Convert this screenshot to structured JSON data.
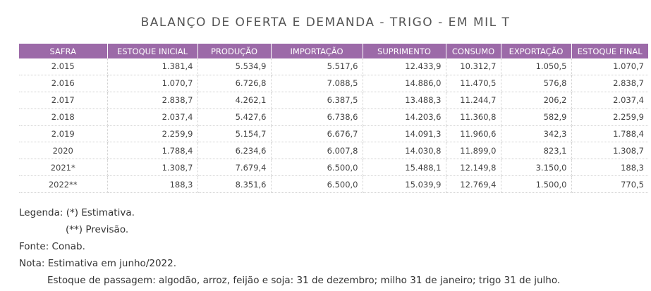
{
  "title": "BALANÇO DE OFERTA E DEMANDA - TRIGO - EM MIL T",
  "table": {
    "headers": [
      "SAFRA",
      "ESTOQUE INICIAL",
      "PRODUÇÃO",
      "IMPORTAÇÃO",
      "SUPRIMENTO",
      "CONSUMO",
      "EXPORTAÇÃO",
      "ESTOQUE FINAL"
    ],
    "rows": [
      [
        "2.015",
        "1.381,4",
        "5.534,9",
        "5.517,6",
        "12.433,9",
        "10.312,7",
        "1.050,5",
        "1.070,7"
      ],
      [
        "2.016",
        "1.070,7",
        "6.726,8",
        "7.088,5",
        "14.886,0",
        "11.470,5",
        "576,8",
        "2.838,7"
      ],
      [
        "2.017",
        "2.838,7",
        "4.262,1",
        "6.387,5",
        "13.488,3",
        "11.244,7",
        "206,2",
        "2.037,4"
      ],
      [
        "2.018",
        "2.037,4",
        "5.427,6",
        "6.738,6",
        "14.203,6",
        "11.360,8",
        "582,9",
        "2.259,9"
      ],
      [
        "2.019",
        "2.259,9",
        "5.154,7",
        "6.676,7",
        "14.091,3",
        "11.960,6",
        "342,3",
        "1.788,4"
      ],
      [
        "2020",
        "1.788,4",
        "6.234,6",
        "6.007,8",
        "14.030,8",
        "11.899,0",
        "823,1",
        "1.308,7"
      ],
      [
        "2021*",
        "1.308,7",
        "7.679,4",
        "6.500,0",
        "15.488,1",
        "12.149,8",
        "3.150,0",
        "188,3"
      ],
      [
        "2022**",
        "188,3",
        "8.351,6",
        "6.500,0",
        "15.039,9",
        "12.769,4",
        "1.500,0",
        "770,5"
      ]
    ]
  },
  "notes": {
    "legend1": "Legenda: (*) Estimativa.",
    "legend2": "(**) Previsão.",
    "source": "Fonte: Conab.",
    "note1": "Nota: Estimativa em junho/2022.",
    "note2": "Estoque de passagem: algodão, arroz, feijão e soja: 31 de dezembro; milho 31 de janeiro; trigo 31 de julho."
  }
}
